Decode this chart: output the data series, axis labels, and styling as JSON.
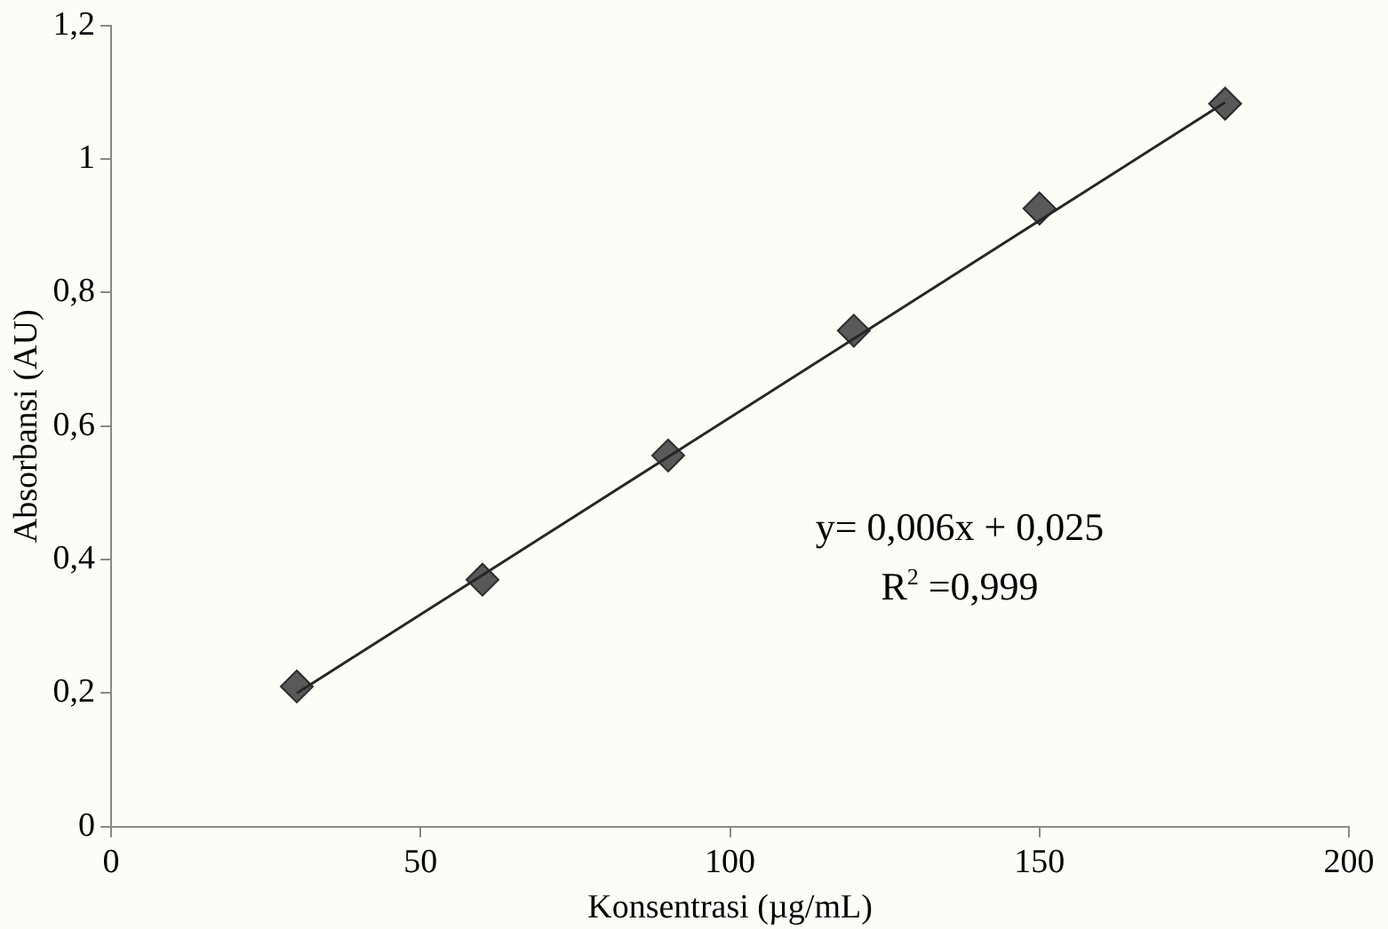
{
  "chart_data": {
    "type": "scatter",
    "xlabel": "Konsentrasi (µg/mL)",
    "ylabel": "Absorbansi (AU)",
    "series": [
      {
        "color": "#595959",
        "x": [
          30,
          60,
          90,
          120,
          150,
          180
        ],
        "values": [
          0.21,
          0.37,
          0.556,
          0.743,
          0.926,
          1.083
        ],
        "marker": "diamond"
      },
      {
        "type": "line",
        "color": "#262626",
        "x": [
          30,
          180
        ],
        "values": [
          0.2,
          1.085
        ],
        "marker": "none"
      }
    ],
    "xlim": [
      0,
      200
    ],
    "xticks": [
      0,
      50,
      100,
      150,
      200
    ],
    "ylim": [
      0,
      1.2
    ],
    "yticks": [
      0,
      {
        "value": 0.2,
        "label": "0,2"
      },
      {
        "value": 0.4,
        "label": "0,4"
      },
      {
        "value": 0.6,
        "label": "0,6"
      },
      {
        "value": 0.8,
        "label": "0,8"
      },
      1,
      {
        "value": 1.2,
        "label": "1,2"
      }
    ],
    "annotations": [
      "y= 0,006x + 0,025",
      "R$^{2}$ =0,999"
    ],
    "grid": false,
    "legend": false
  }
}
